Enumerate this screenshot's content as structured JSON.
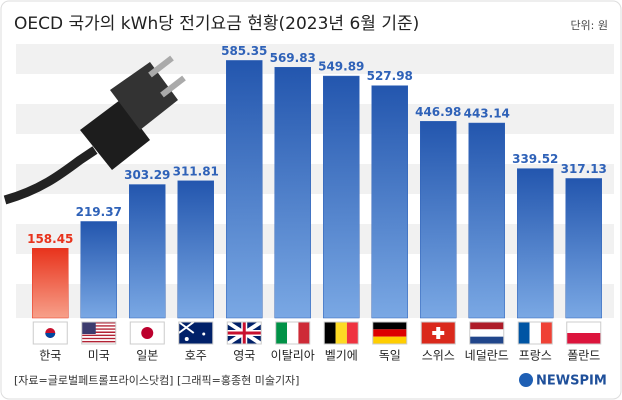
{
  "chart_data": {
    "type": "bar",
    "title": "OECD 국가의 kWh당 전기요금 현황(2023년 6월 기준)",
    "unit_label": "단위: 원",
    "categories": [
      "한국",
      "미국",
      "일본",
      "호주",
      "영국",
      "이탈리아",
      "벨기에",
      "독일",
      "스위스",
      "네덜란드",
      "프랑스",
      "폴란드"
    ],
    "values": [
      158.45,
      219.37,
      303.29,
      311.81,
      585.35,
      569.83,
      549.89,
      527.98,
      446.98,
      443.14,
      339.52,
      317.13
    ],
    "colors": [
      "#e8331c",
      "#2f62b8",
      "#2f62b8",
      "#2f62b8",
      "#2f62b8",
      "#2f62b8",
      "#2f62b8",
      "#2f62b8",
      "#2f62b8",
      "#2f62b8",
      "#2f62b8",
      "#2f62b8"
    ],
    "source": "[자료=글로벌페트롤프라이스닷컴] [그래픽=홍종현 미술기자]",
    "logo": "NEWSPIM"
  }
}
